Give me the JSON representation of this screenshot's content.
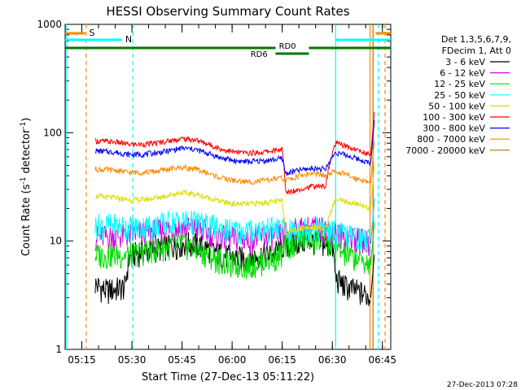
{
  "chart_data": {
    "type": "line",
    "title": "HESSI Observing Summary Count Rates",
    "xlabel": "Start Time (27-Dec-13 05:11:22)",
    "ylabel_main": "Count Rate (s",
    "ylabel_sup1": "-1",
    "ylabel_mid": " detector",
    "ylabel_sup2": "-1",
    "ylabel_end": ")",
    "yscale": "log",
    "ylim": [
      1,
      1000
    ],
    "xlim_minutes": [
      0,
      97.5
    ],
    "x_tick_labels": [
      "05:15",
      "05:30",
      "05:45",
      "06:00",
      "06:15",
      "06:30",
      "06:45"
    ],
    "x_tick_minutes": [
      5,
      20,
      35,
      50,
      65,
      80,
      95
    ],
    "y_tick_labels": [
      "1",
      "10",
      "100",
      "1000"
    ],
    "y_tick_values": [
      1,
      10,
      100,
      1000
    ],
    "legend_title_1": "Det 1,3,5,6,7,9,",
    "legend_title_2": "FDecim 1, Att 0",
    "series": [
      {
        "name": "3 - 6 keV",
        "color": "#000000",
        "x": [
          9,
          12,
          15,
          18,
          19,
          20,
          23,
          27,
          31,
          35,
          39,
          43,
          47,
          51,
          55,
          59,
          62,
          65,
          66,
          70,
          74,
          77,
          80,
          81,
          84,
          87,
          90,
          91.5
        ],
        "y": [
          4,
          3.5,
          3.6,
          3.8,
          6.5,
          7.5,
          8,
          8.5,
          9,
          9.5,
          9.5,
          8.5,
          7.5,
          7,
          7,
          7.5,
          7.5,
          9,
          9,
          10,
          10,
          9.5,
          9,
          4.5,
          3.8,
          3.5,
          3.2,
          3.0
        ]
      },
      {
        "name": "6 - 12 keV",
        "color": "#dd00dd",
        "x": [
          9,
          15,
          19,
          23,
          27,
          31,
          35,
          39,
          43,
          47,
          51,
          55,
          59,
          62,
          65,
          66,
          70,
          74,
          78,
          81,
          84,
          87,
          90,
          91.5
        ],
        "y": [
          11,
          11,
          11.5,
          12,
          12.5,
          13,
          13.5,
          13,
          12,
          11,
          10.5,
          10.5,
          11,
          11,
          11.5,
          12,
          13,
          13.5,
          13,
          12,
          11,
          10.5,
          10,
          9.5
        ]
      },
      {
        "name": "12 - 25 keV",
        "color": "#00dd00",
        "x": [
          9,
          15,
          19,
          23,
          27,
          31,
          35,
          39,
          43,
          47,
          51,
          55,
          59,
          62,
          65,
          66,
          70,
          74,
          78,
          81,
          84,
          87,
          90,
          91.5
        ],
        "y": [
          7.5,
          7.5,
          7.5,
          8,
          8.5,
          9,
          9.5,
          8.5,
          7.5,
          6.5,
          6,
          6,
          6.5,
          7,
          7.5,
          9,
          10,
          10.5,
          10,
          8.5,
          7.5,
          7,
          6.5,
          6
        ]
      },
      {
        "name": "25 - 50 keV",
        "color": "#00ffff",
        "x": [
          9,
          15,
          19,
          23,
          27,
          31,
          35,
          39,
          43,
          47,
          51,
          55,
          59,
          62,
          65,
          66,
          70,
          74,
          78,
          81,
          84,
          87,
          90,
          91.5
        ],
        "y": [
          14,
          14,
          13.5,
          13.5,
          14,
          15,
          15.5,
          15,
          14,
          13,
          12.5,
          12.5,
          13,
          13,
          13.5,
          12,
          13,
          13.5,
          13,
          12,
          11.5,
          11,
          10.5,
          10
        ]
      },
      {
        "name": "50 - 100 keV",
        "color": "#dddd00",
        "x": [
          9,
          15,
          19,
          23,
          27,
          31,
          35,
          39,
          43,
          47,
          51,
          55,
          59,
          62,
          65,
          66,
          70,
          74,
          78,
          81,
          84,
          87,
          90,
          91.5
        ],
        "y": [
          26,
          25,
          24,
          24,
          25,
          26.5,
          28,
          27,
          25,
          23,
          22,
          22,
          22.5,
          23,
          23.5,
          12,
          13,
          13.5,
          13,
          24,
          23,
          22,
          21,
          20
        ]
      },
      {
        "name": "100 - 300 keV",
        "color": "#ff0000",
        "x": [
          9,
          15,
          19,
          23,
          27,
          31,
          35,
          39,
          43,
          47,
          51,
          55,
          59,
          62,
          65,
          66,
          70,
          74,
          78,
          81,
          84,
          87,
          90,
          91.5
        ],
        "y": [
          84,
          82,
          78,
          78,
          80,
          84,
          88,
          86,
          78,
          70,
          66,
          65,
          66,
          68,
          70,
          28,
          30,
          32,
          32,
          80,
          75,
          70,
          65,
          62
        ]
      },
      {
        "name": "300 - 800 keV",
        "color": "#0000ff",
        "x": [
          9,
          15,
          19,
          23,
          27,
          31,
          35,
          39,
          43,
          47,
          51,
          55,
          59,
          62,
          65,
          66,
          70,
          74,
          78,
          81,
          84,
          87,
          90,
          91.5
        ],
        "y": [
          68,
          66,
          63,
          63,
          65,
          68,
          72,
          70,
          64,
          58,
          55,
          54,
          55,
          56,
          58,
          42,
          45,
          47,
          46,
          66,
          62,
          58,
          54,
          52
        ]
      },
      {
        "name": "800 - 7000 keV",
        "color": "#ff8800",
        "x": [
          9,
          15,
          19,
          23,
          27,
          31,
          35,
          39,
          43,
          47,
          51,
          55,
          59,
          62,
          65,
          66,
          70,
          74,
          78,
          81,
          84,
          87,
          90,
          91.5
        ],
        "y": [
          46,
          45,
          43,
          43,
          44,
          46,
          48,
          46,
          42,
          38,
          36,
          35,
          36,
          37,
          38,
          36,
          40,
          42,
          40,
          44,
          41,
          38,
          36,
          34
        ]
      },
      {
        "name": "7000 - 20000 keV",
        "color": "#aa7700",
        "x": [],
        "y": []
      }
    ],
    "bars": {
      "S": {
        "label": "S",
        "color": "#ff8800"
      },
      "N": {
        "label": "N",
        "color": "#00ffff"
      },
      "RD0": {
        "label": "RD0",
        "color": "#007700"
      },
      "RD6": {
        "label": "RD6",
        "color": "#007700"
      }
    },
    "footer_date": "27-Dec-2013 07:28"
  }
}
